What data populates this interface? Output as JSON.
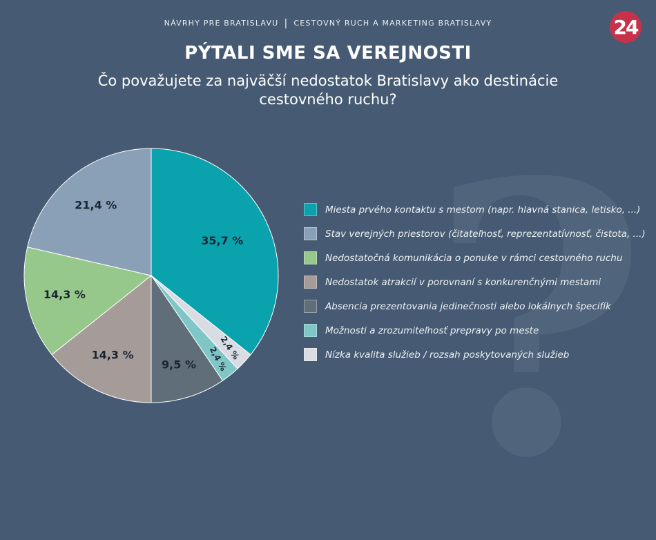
{
  "header": {
    "left": "NÁVRHY PRE BRATISLAVU",
    "separator": "|",
    "right": "CESTOVNÝ RUCH A MARKETING BRATISLAVY",
    "logo": "24"
  },
  "chart_data": {
    "type": "pie",
    "title": "PÝTALI SME SA VEREJNOSTI",
    "subtitle": "Čo považujete za najväčší nedostatok Bratislavy ako destinácie cestovného ruchu?",
    "background_mark": "?",
    "series": [
      {
        "name": "Miesta prvého kontaktu s mestom (napr. hlavná stanica, letisko, ...)",
        "value": 35.7,
        "label": "35,7 %",
        "color": "#0aa3ad"
      },
      {
        "name": "Nízka kvalita služieb / rozsah  poskytovaných služieb",
        "value": 2.4,
        "label": "2,4 %",
        "color": "#d9dde3"
      },
      {
        "name": "Možnosti a zrozumiteľnosť prepravy po meste",
        "value": 2.4,
        "label": "2,4 %",
        "color": "#7fc7c6"
      },
      {
        "name": "Absencia prezentovania jedinečnosti alebo lokálnych špecifík",
        "value": 9.5,
        "label": "9,5 %",
        "color": "#5f6e79"
      },
      {
        "name": "Nedostatok atrakcií v porovnaní s konkurenčnými mestami",
        "value": 14.3,
        "label": "14,3 %",
        "color": "#a59c99"
      },
      {
        "name": "Nedostatočná komunikácia o ponuke v rámci cestovného ruchu",
        "value": 14.3,
        "label": "14,3 %",
        "color": "#97c88b"
      },
      {
        "name": "Stav verejných priestorov (čitateľnosť, reprezentatívnosť, čistota, ...)",
        "value": 21.4,
        "label": "21,4 %",
        "color": "#8aa0b7"
      }
    ],
    "legend_order": [
      "Miesta prvého kontaktu s mestom (napr. hlavná stanica, letisko, ...)",
      "Stav verejných priestorov (čitateľnosť, reprezentatívnosť, čistota, ...)",
      "Nedostatočná komunikácia o ponuke v rámci cestovného ruchu",
      "Nedostatok atrakcií v porovnaní s konkurenčnými mestami",
      "Absencia prezentovania jedinečnosti alebo lokálnych špecifík",
      "Možnosti a zrozumiteľnosť prepravy po meste",
      "Nízka kvalita služieb / rozsah  poskytovaných služieb"
    ],
    "legend_placement": "right"
  }
}
